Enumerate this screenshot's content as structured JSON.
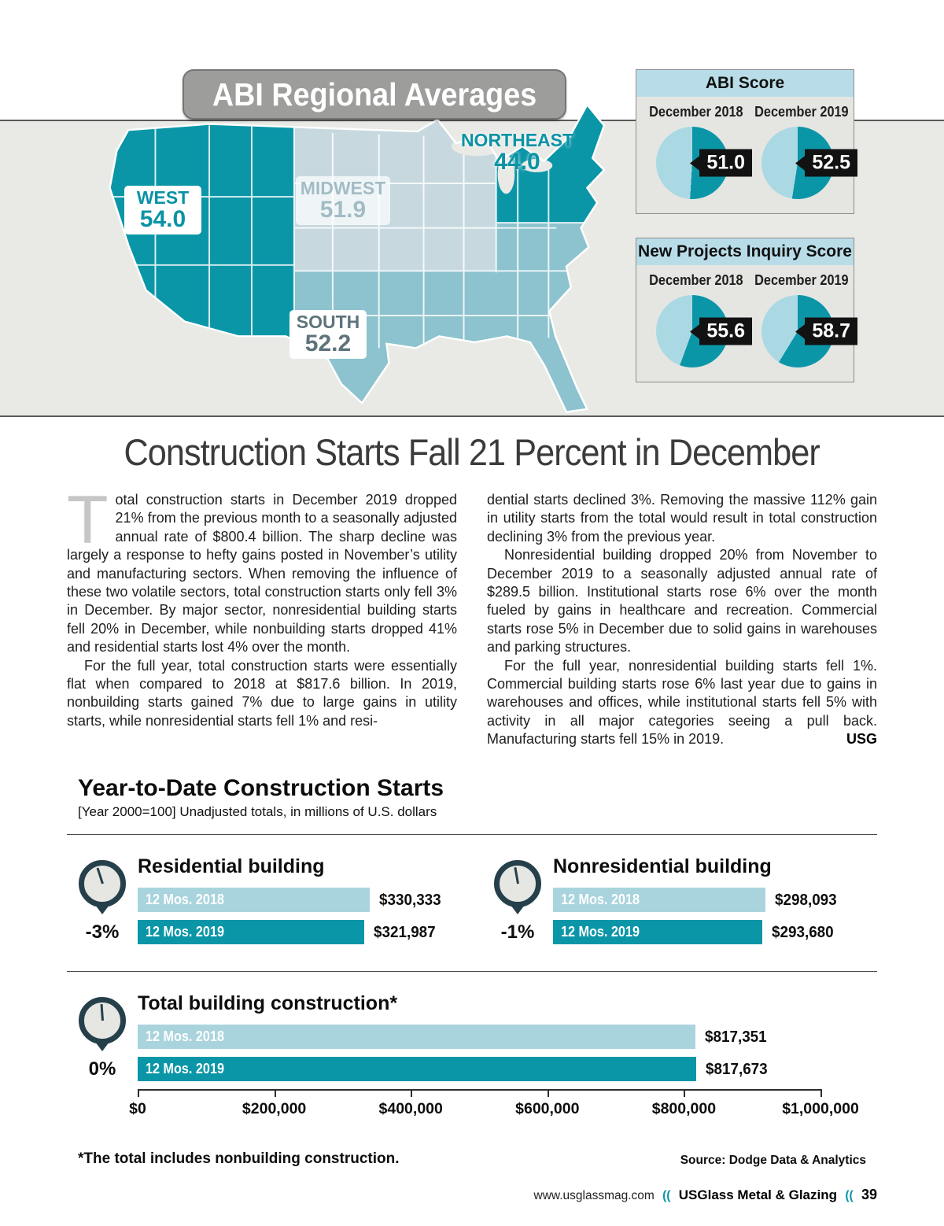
{
  "colors": {
    "teal_dark": "#0b96a8",
    "teal_mid": "#8cc3ce",
    "blue_grey": "#c7d9df",
    "band_grey": "#e9e9e6",
    "header_blue": "#b9dde8",
    "bar_2018": "#a9d4dd",
    "bar_2019": "#0b96a8",
    "pie_light": "#abd9e3",
    "pie_dark": "#0b96a8",
    "tag_black": "#121212",
    "gauge_dark": "#25404a"
  },
  "map_section": {
    "title": "ABI Regional Averages",
    "regions": {
      "west": {
        "name": "WEST",
        "value": "54.0"
      },
      "midwest": {
        "name": "MIDWEST",
        "value": "51.9"
      },
      "northeast": {
        "name": "NORTHEAST",
        "value": "44.0"
      },
      "south": {
        "name": "SOUTH",
        "value": "52.2"
      }
    }
  },
  "panels": [
    {
      "title": "ABI Score",
      "columns": [
        {
          "label": "December 2018",
          "value": "51.0"
        },
        {
          "label": "December 2019",
          "value": "52.5"
        }
      ]
    },
    {
      "title": "New Projects Inquiry Score",
      "columns": [
        {
          "label": "December 2018",
          "value": "55.6"
        },
        {
          "label": "December 2019",
          "value": "58.7"
        }
      ]
    }
  ],
  "article": {
    "headline": "Construction Starts Fall 21 Percent in December",
    "dropcap": "T",
    "col1_p1": "otal construction starts in December 2019 dropped 21% from the previous month to a seasonally adjusted annual rate of $800.4 billion. The sharp decline was largely a response to hefty gains posted in November’s utility and manufacturing sectors. When removing the influence of these two volatile sectors, total construction starts only fell 3% in December. By major sector, nonresidential building starts fell 20% in December, while nonbuilding starts dropped 41% and residential starts lost 4% over the month.",
    "col1_p2": "For the full year, total construction starts were essentially flat when compared to 2018 at $817.6 billion. In 2019, nonbuilding starts gained 7% due to large gains in utility starts, while nonresidential starts fell 1% and resi-",
    "col2_p1": "dential starts declined 3%. Removing the massive 112% gain in utility starts from the total would result in total construction declining 3% from the previous year.",
    "col2_p2": "Nonresidential building dropped 20% from November to December 2019 to a seasonally adjusted annual rate of $289.5 billion. Institutional starts rose 6% over the month fueled by gains in healthcare and recreation. Commercial starts rose 5% in December due to solid gains in warehouses and parking structures.",
    "col2_p3": "For the full year, nonresidential building starts fell 1%. Commercial building starts rose 6% last year due to gains in warehouses and offices, while institutional starts fell 5% with activity in all major categories seeing a pull back. Manufacturing starts fell 15% in 2019.",
    "endmark": "USG"
  },
  "charts_header": {
    "title": "Year-to-Date Construction Starts",
    "subtitle": "[Year 2000=100] Unadjusted totals, in millions of U.S. dollars"
  },
  "chart_data": [
    {
      "type": "bar",
      "title": "Residential building",
      "change_label": "-3%",
      "needle_deg": -18,
      "scale_max": 330333,
      "bars": [
        {
          "label": "12 Mos. 2018",
          "value": 330333,
          "display": "$330,333"
        },
        {
          "label": "12 Mos. 2019",
          "value": 321987,
          "display": "$321,987"
        }
      ]
    },
    {
      "type": "bar",
      "title": "Nonresidential building",
      "change_label": "-1%",
      "needle_deg": -10,
      "scale_max": 298093,
      "bars": [
        {
          "label": "12 Mos. 2018",
          "value": 298093,
          "display": "$298,093"
        },
        {
          "label": "12 Mos. 2019",
          "value": 293680,
          "display": "$293,680"
        }
      ]
    },
    {
      "type": "bar",
      "title": "Total building construction*",
      "change_label": "0%",
      "needle_deg": -4,
      "scale_max": 1000000,
      "bars": [
        {
          "label": "12 Mos. 2018",
          "value": 817351,
          "display": "$817,351"
        },
        {
          "label": "12 Mos. 2019",
          "value": 817673,
          "display": "$817,673"
        }
      ],
      "axis_ticks": [
        "$0",
        "$200,000",
        "$400,000",
        "$600,000",
        "$800,000",
        "$1,000,000"
      ]
    }
  ],
  "footnote": "*The total includes nonbuilding construction.",
  "source": "Source: Dodge Data & Analytics",
  "footer": {
    "url": "www.usglassmag.com",
    "sep": "((",
    "magazine": "USGlass Metal & Glazing",
    "page": "39"
  }
}
